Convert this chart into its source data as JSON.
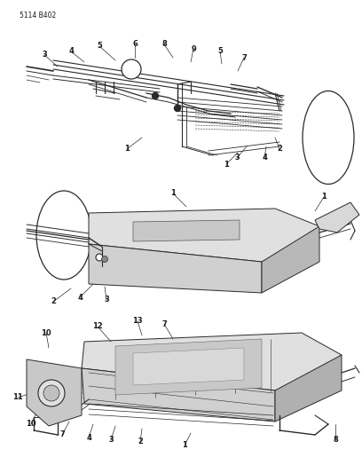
{
  "title": "5114 B402",
  "bg_color": "#ffffff",
  "line_color": "#2a2a2a",
  "text_color": "#1a1a1a",
  "fig_width": 4.08,
  "fig_height": 5.33,
  "dpi": 100,
  "gray1": "#c0c0c0",
  "gray2": "#a8a8a8",
  "gray3": "#888888"
}
